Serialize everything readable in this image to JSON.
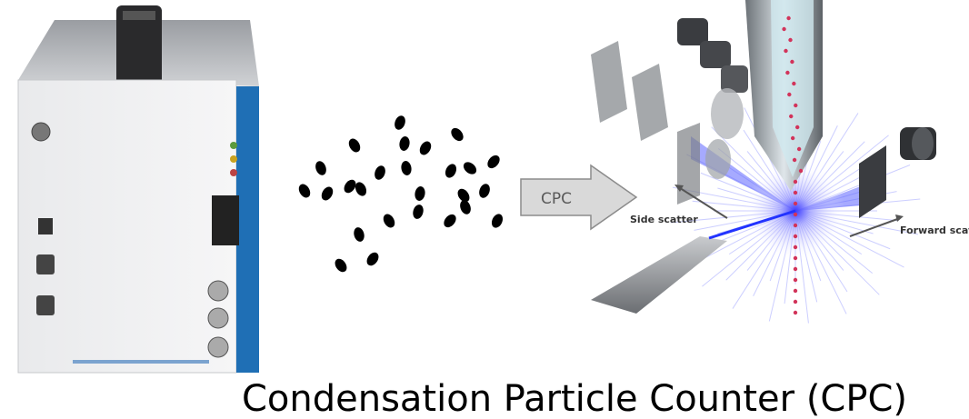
{
  "arrow_label": "CPC",
  "labels": {
    "side_scatter": "Side scatter",
    "forward_scatter": "Forward scatter"
  },
  "caption": "Condensation Particle Counter (CPC)"
}
